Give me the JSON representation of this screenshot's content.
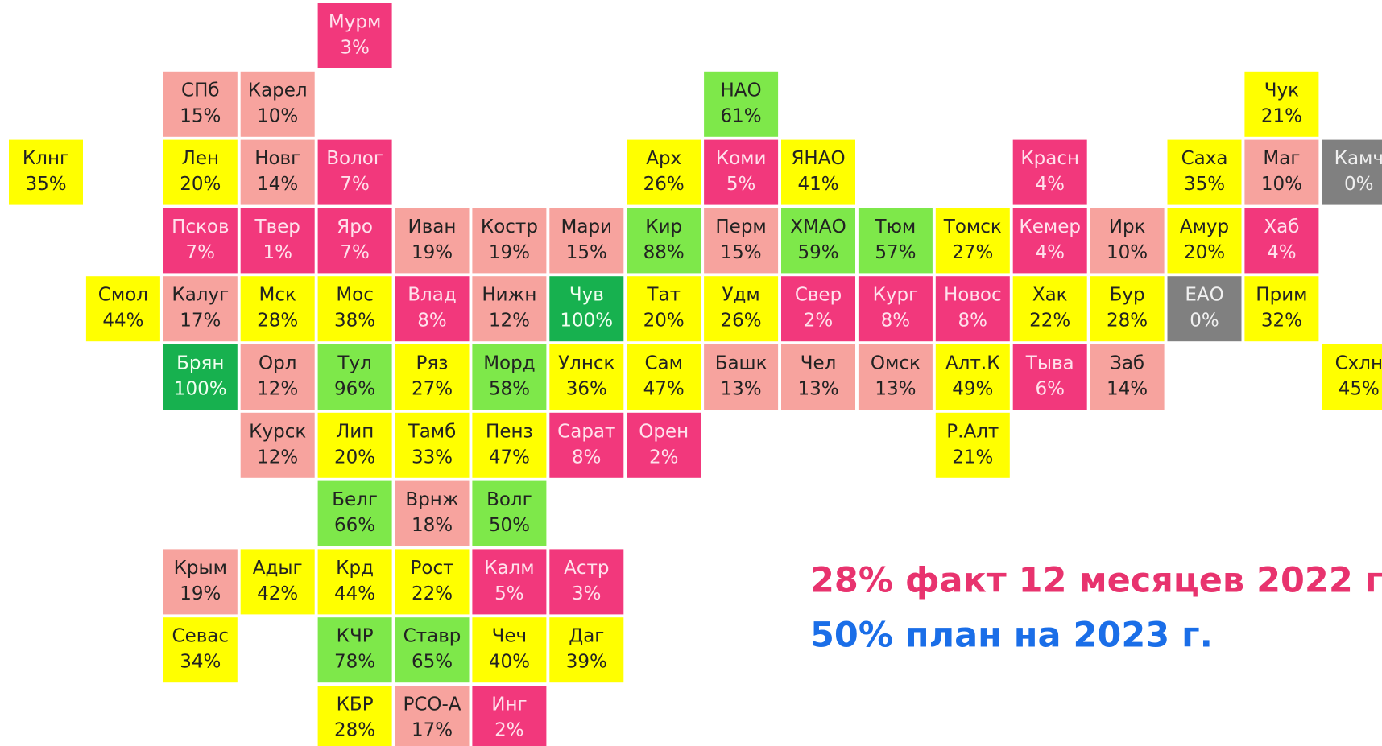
{
  "tiles": [
    {
      "name": "Мурм",
      "value": "3%",
      "color": "#f2387c"
    },
    {
      "name": "СПб",
      "value": "15%",
      "color": "#f7a39e"
    },
    {
      "name": "Карел",
      "value": "10%",
      "color": "#f7a39e"
    },
    {
      "name": "НАО",
      "value": "61%",
      "color": "#7ee84a"
    },
    {
      "name": "Чук",
      "value": "21%",
      "color": "#ffff00"
    },
    {
      "name": "Клнг",
      "value": "35%",
      "color": "#ffff00"
    },
    {
      "name": "Лен",
      "value": "20%",
      "color": "#ffff00"
    },
    {
      "name": "Новг",
      "value": "14%",
      "color": "#f7a39e"
    },
    {
      "name": "Волог",
      "value": "7%",
      "color": "#f2387c"
    },
    {
      "name": "Арх",
      "value": "26%",
      "color": "#ffff00"
    },
    {
      "name": "Коми",
      "value": "5%",
      "color": "#f2387c"
    },
    {
      "name": "ЯНАО",
      "value": "41%",
      "color": "#ffff00"
    },
    {
      "name": "Красн",
      "value": "4%",
      "color": "#f2387c"
    },
    {
      "name": "Саха",
      "value": "35%",
      "color": "#ffff00"
    },
    {
      "name": "Маг",
      "value": "10%",
      "color": "#f7a39e"
    },
    {
      "name": "Камч",
      "value": "0%",
      "color": "#808080"
    },
    {
      "name": "Псков",
      "value": "7%",
      "color": "#f2387c"
    },
    {
      "name": "Твер",
      "value": "1%",
      "color": "#f2387c"
    },
    {
      "name": "Яро",
      "value": "7%",
      "color": "#f2387c"
    },
    {
      "name": "Иван",
      "value": "19%",
      "color": "#f7a39e"
    },
    {
      "name": "Костр",
      "value": "19%",
      "color": "#f7a39e"
    },
    {
      "name": "Мари",
      "value": "15%",
      "color": "#f7a39e"
    },
    {
      "name": "Кир",
      "value": "88%",
      "color": "#7ee84a"
    },
    {
      "name": "Перм",
      "value": "15%",
      "color": "#f7a39e"
    },
    {
      "name": "ХМАО",
      "value": "59%",
      "color": "#7ee84a"
    },
    {
      "name": "Тюм",
      "value": "57%",
      "color": "#7ee84a"
    },
    {
      "name": "Томск",
      "value": "27%",
      "color": "#ffff00"
    },
    {
      "name": "Кемер",
      "value": "4%",
      "color": "#f2387c"
    },
    {
      "name": "Ирк",
      "value": "10%",
      "color": "#f7a39e"
    },
    {
      "name": "Амур",
      "value": "20%",
      "color": "#ffff00"
    },
    {
      "name": "Хаб",
      "value": "4%",
      "color": "#f2387c"
    },
    {
      "name": "Смол",
      "value": "44%",
      "color": "#ffff00"
    },
    {
      "name": "Калуг",
      "value": "17%",
      "color": "#f7a39e"
    },
    {
      "name": "Мск",
      "value": "28%",
      "color": "#ffff00"
    },
    {
      "name": "Мос",
      "value": "38%",
      "color": "#ffff00"
    },
    {
      "name": "Влад",
      "value": "8%",
      "color": "#f2387c"
    },
    {
      "name": "Нижн",
      "value": "12%",
      "color": "#f7a39e"
    },
    {
      "name": "Чув",
      "value": "100%",
      "color": "#17b14f"
    },
    {
      "name": "Тат",
      "value": "20%",
      "color": "#ffff00"
    },
    {
      "name": "Удм",
      "value": "26%",
      "color": "#ffff00"
    },
    {
      "name": "Свер",
      "value": "2%",
      "color": "#f2387c"
    },
    {
      "name": "Кург",
      "value": "8%",
      "color": "#f2387c"
    },
    {
      "name": "Новос",
      "value": "8%",
      "color": "#f2387c"
    },
    {
      "name": "Хак",
      "value": "22%",
      "color": "#ffff00"
    },
    {
      "name": "Бур",
      "value": "28%",
      "color": "#ffff00"
    },
    {
      "name": "ЕАО",
      "value": "0%",
      "color": "#808080"
    },
    {
      "name": "Прим",
      "value": "32%",
      "color": "#ffff00"
    },
    {
      "name": "Брян",
      "value": "100%",
      "color": "#17b14f"
    },
    {
      "name": "Орл",
      "value": "12%",
      "color": "#f7a39e"
    },
    {
      "name": "Тул",
      "value": "96%",
      "color": "#7ee84a"
    },
    {
      "name": "Ряз",
      "value": "27%",
      "color": "#ffff00"
    },
    {
      "name": "Морд",
      "value": "58%",
      "color": "#7ee84a"
    },
    {
      "name": "Улнск",
      "value": "36%",
      "color": "#ffff00"
    },
    {
      "name": "Сам",
      "value": "47%",
      "color": "#ffff00"
    },
    {
      "name": "Башк",
      "value": "13%",
      "color": "#f7a39e"
    },
    {
      "name": "Чел",
      "value": "13%",
      "color": "#f7a39e"
    },
    {
      "name": "Омск",
      "value": "13%",
      "color": "#f7a39e"
    },
    {
      "name": "Алт.К",
      "value": "49%",
      "color": "#ffff00"
    },
    {
      "name": "Тыва",
      "value": "6%",
      "color": "#f2387c"
    },
    {
      "name": "Заб",
      "value": "14%",
      "color": "#f7a39e"
    },
    {
      "name": "Схлн",
      "value": "45%",
      "color": "#ffff00"
    },
    {
      "name": "Курск",
      "value": "12%",
      "color": "#f7a39e"
    },
    {
      "name": "Лип",
      "value": "20%",
      "color": "#ffff00"
    },
    {
      "name": "Тамб",
      "value": "33%",
      "color": "#ffff00"
    },
    {
      "name": "Пенз",
      "value": "47%",
      "color": "#ffff00"
    },
    {
      "name": "Сарат",
      "value": "8%",
      "color": "#f2387c"
    },
    {
      "name": "Орен",
      "value": "2%",
      "color": "#f2387c"
    },
    {
      "name": "Р.Алт",
      "value": "21%",
      "color": "#ffff00"
    },
    {
      "name": "Белг",
      "value": "66%",
      "color": "#7ee84a"
    },
    {
      "name": "Врнж",
      "value": "18%",
      "color": "#f7a39e"
    },
    {
      "name": "Волг",
      "value": "50%",
      "color": "#7ee84a"
    },
    {
      "name": "Крым",
      "value": "19%",
      "color": "#f7a39e"
    },
    {
      "name": "Адыг",
      "value": "42%",
      "color": "#ffff00"
    },
    {
      "name": "Крд",
      "value": "44%",
      "color": "#ffff00"
    },
    {
      "name": "Рост",
      "value": "22%",
      "color": "#ffff00"
    },
    {
      "name": "Калм",
      "value": "5%",
      "color": "#f2387c"
    },
    {
      "name": "Астр",
      "value": "3%",
      "color": "#f2387c"
    },
    {
      "name": "Севас",
      "value": "34%",
      "color": "#ffff00"
    },
    {
      "name": "КЧР",
      "value": "78%",
      "color": "#7ee84a"
    },
    {
      "name": "Ставр",
      "value": "65%",
      "color": "#7ee84a"
    },
    {
      "name": "Чеч",
      "value": "40%",
      "color": "#ffff00"
    },
    {
      "name": "Даг",
      "value": "39%",
      "color": "#ffff00"
    },
    {
      "name": "КБР",
      "value": "28%",
      "color": "#ffff00"
    },
    {
      "name": "РСО-А",
      "value": "17%",
      "color": "#f7a39e"
    },
    {
      "name": "Инг",
      "value": "2%",
      "color": "#f2387c"
    }
  ],
  "legend": {
    "fact": "28% факт 12 месяцев 2022 г.",
    "plan": "50% план на 2023 г."
  }
}
